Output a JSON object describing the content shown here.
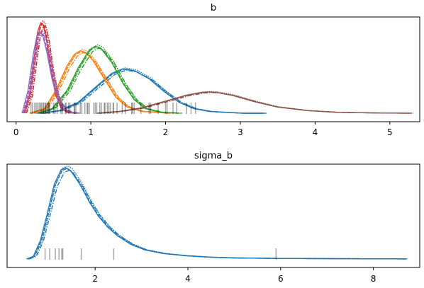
{
  "chart_data": [
    {
      "type": "line",
      "title": "b",
      "xlabel": "",
      "ylabel": "",
      "xlim": [
        -0.12,
        5.4
      ],
      "x_ticks": [
        0,
        1,
        2,
        3,
        4,
        5
      ],
      "y_ticks": [],
      "grid": false,
      "legend": "none",
      "chains_per_series": 4,
      "series": [
        {
          "color": "#1f77b4",
          "x": [
            0.35,
            0.6,
            0.85,
            1.1,
            1.3,
            1.45,
            1.6,
            1.8,
            2.0,
            2.2,
            2.4,
            2.6,
            2.8,
            3.05,
            3.33
          ],
          "y": [
            0.0,
            0.03,
            0.12,
            0.3,
            0.44,
            0.49,
            0.47,
            0.38,
            0.24,
            0.12,
            0.05,
            0.02,
            0.01,
            0.0,
            0.0
          ],
          "rug": [
            0.42,
            0.55,
            0.67,
            0.78,
            0.95,
            1.08,
            1.18,
            1.24,
            1.3,
            1.42,
            1.55,
            1.67,
            1.78,
            1.9,
            2.02,
            2.15
          ]
        },
        {
          "color": "#ff7f0e",
          "x": [
            0.2,
            0.4,
            0.55,
            0.7,
            0.8,
            0.88,
            0.95,
            1.05,
            1.2,
            1.35,
            1.5,
            1.7,
            1.9,
            2.05
          ],
          "y": [
            0.0,
            0.05,
            0.25,
            0.52,
            0.65,
            0.69,
            0.67,
            0.58,
            0.38,
            0.18,
            0.07,
            0.02,
            0.01,
            0.0
          ],
          "rug": [
            0.45,
            0.52,
            0.6,
            0.66,
            0.72,
            0.8,
            0.86,
            0.92,
            0.98,
            1.06,
            1.14,
            1.22
          ]
        },
        {
          "color": "#2ca02c",
          "x": [
            0.3,
            0.5,
            0.7,
            0.85,
            1.0,
            1.08,
            1.15,
            1.3,
            1.45,
            1.6,
            1.75,
            1.95,
            2.2
          ],
          "y": [
            0.0,
            0.05,
            0.25,
            0.5,
            0.7,
            0.74,
            0.72,
            0.56,
            0.33,
            0.15,
            0.05,
            0.01,
            0.0
          ],
          "rug": [
            0.62,
            0.7,
            0.78,
            0.88,
            0.96,
            1.04,
            1.12,
            1.19,
            1.26,
            1.35,
            1.46,
            1.58
          ]
        },
        {
          "color": "#d62728",
          "x": [
            0.12,
            0.2,
            0.26,
            0.31,
            0.35,
            0.38,
            0.42,
            0.48,
            0.55,
            0.62,
            0.7,
            0.8
          ],
          "y": [
            0.0,
            0.2,
            0.6,
            0.9,
            1.0,
            0.98,
            0.85,
            0.5,
            0.2,
            0.06,
            0.01,
            0.0
          ],
          "rug": [
            0.22,
            0.27,
            0.31,
            0.34,
            0.37,
            0.4,
            0.44,
            0.5
          ]
        },
        {
          "color": "#9467bd",
          "x": [
            0.1,
            0.18,
            0.25,
            0.3,
            0.34,
            0.38,
            0.43,
            0.5,
            0.58,
            0.66,
            0.75,
            0.85
          ],
          "y": [
            0.0,
            0.25,
            0.65,
            0.86,
            0.9,
            0.85,
            0.68,
            0.38,
            0.14,
            0.04,
            0.01,
            0.0
          ],
          "rug": [
            0.2,
            0.25,
            0.29,
            0.33,
            0.36,
            0.39,
            0.43
          ]
        },
        {
          "color": "#8c564b",
          "x": [
            1.1,
            1.4,
            1.7,
            2.0,
            2.3,
            2.5,
            2.6,
            2.7,
            2.9,
            3.2,
            3.5,
            3.9,
            4.3,
            4.8,
            5.3
          ],
          "y": [
            0.0,
            0.02,
            0.06,
            0.13,
            0.2,
            0.23,
            0.235,
            0.23,
            0.2,
            0.13,
            0.07,
            0.03,
            0.01,
            0.003,
            0.0
          ],
          "rug": [
            1.3,
            1.55,
            1.8,
            2.0,
            2.1,
            2.28,
            2.34,
            2.4
          ]
        }
      ]
    },
    {
      "type": "line",
      "title": "sigma_b",
      "xlabel": "",
      "ylabel": "",
      "xlim": [
        0.1,
        9.0
      ],
      "x_ticks": [
        2,
        4,
        6,
        8
      ],
      "y_ticks": [],
      "grid": false,
      "legend": "none",
      "chains_per_series": 4,
      "series": [
        {
          "color": "#1f77b4",
          "x": [
            0.55,
            0.7,
            0.85,
            1.0,
            1.15,
            1.3,
            1.4,
            1.5,
            1.7,
            1.9,
            2.1,
            2.3,
            2.5,
            2.8,
            3.1,
            3.5,
            4.0,
            4.5,
            5.0,
            6.0,
            7.0,
            8.0,
            8.7
          ],
          "y": [
            0.0,
            0.03,
            0.2,
            0.5,
            0.82,
            0.98,
            1.0,
            0.97,
            0.82,
            0.63,
            0.47,
            0.35,
            0.26,
            0.16,
            0.1,
            0.06,
            0.035,
            0.02,
            0.012,
            0.006,
            0.004,
            0.002,
            0.001
          ],
          "rug": [
            0.92,
            1.02,
            1.14,
            1.22,
            1.28,
            1.3,
            1.7,
            2.4,
            5.9
          ]
        }
      ]
    }
  ]
}
